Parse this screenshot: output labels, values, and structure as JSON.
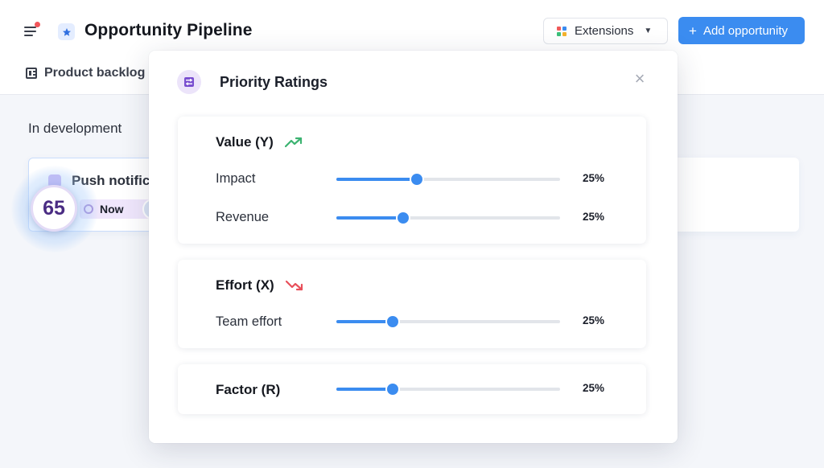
{
  "header": {
    "title": "Opportunity Pipeline",
    "extensions_label": "Extensions",
    "add_label": "Add opportunity",
    "tab_label": "Product backlog",
    "accent": "#3b8cf0"
  },
  "board": {
    "column_title": "In development",
    "card": {
      "title": "Push notific",
      "tag": "Now",
      "score": "65"
    }
  },
  "modal": {
    "title": "Priority Ratings",
    "icons": {
      "header": "sliders-icon",
      "close": "close-icon"
    },
    "sections": [
      {
        "title": "Value (Y)",
        "trend_icon": "trend-up-icon",
        "trend_color": "#3cb371",
        "rows": [
          {
            "label": "Impact",
            "level": 0.36,
            "value": "25%"
          },
          {
            "label": "Revenue",
            "level": 0.3,
            "value": "25%"
          }
        ]
      },
      {
        "title": "Effort (X)",
        "trend_icon": "trend-down-icon",
        "trend_color": "#e8505b",
        "rows": [
          {
            "label": "Team effort",
            "level": 0.25,
            "value": "25%"
          }
        ]
      },
      {
        "title": "Factor (R)",
        "rows": [
          {
            "label": "",
            "level": 0.25,
            "value": "25%"
          }
        ]
      }
    ]
  }
}
